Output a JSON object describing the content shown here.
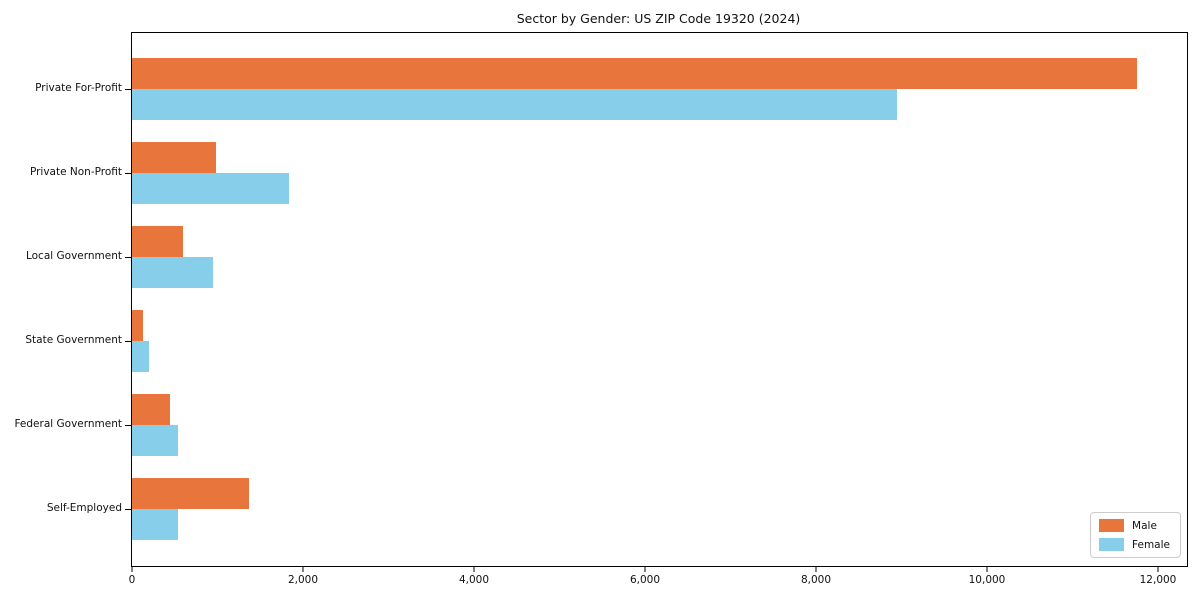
{
  "title": "Sector by Gender: US ZIP Code 19320 (2024)",
  "colors": {
    "male_bar": "#e8763c",
    "female_bar": "#87ceeb",
    "axis": "#000000",
    "legend_border": "#cccccc"
  },
  "chart_data": {
    "type": "bar",
    "orientation": "horizontal",
    "title": "Sector by Gender: US ZIP Code 19320 (2024)",
    "categories": [
      "Private For-Profit",
      "Private Non-Profit",
      "Local Government",
      "State Government",
      "Federal Government",
      "Self-Employed"
    ],
    "series": [
      {
        "name": "Male",
        "color": "#e8763c",
        "values": [
          11750,
          980,
          600,
          130,
          440,
          1370
        ]
      },
      {
        "name": "Female",
        "color": "#87ceeb",
        "values": [
          8950,
          1840,
          950,
          200,
          540,
          540
        ]
      }
    ],
    "xlabel": "",
    "ylabel": "",
    "xlim": [
      0,
      12340
    ],
    "xticks": [
      0,
      2000,
      4000,
      6000,
      8000,
      10000,
      12000
    ],
    "xtick_labels": [
      "0",
      "2,000",
      "4,000",
      "6,000",
      "8,000",
      "10,000",
      "12,000"
    ],
    "grid": false,
    "legend_position": "lower right"
  }
}
